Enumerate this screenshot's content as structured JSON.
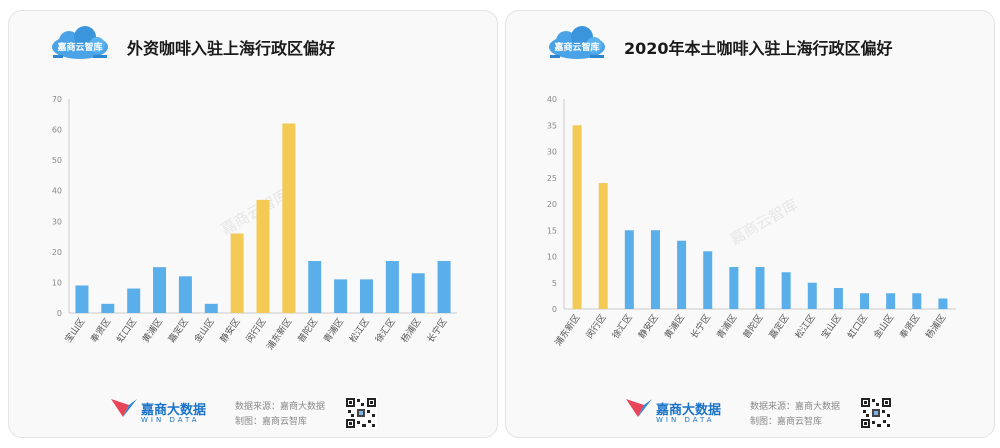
{
  "brand": {
    "logo_text": "嘉商云智库",
    "name": "嘉商大数据",
    "sub": "WIN DATA",
    "source_line": "数据来源：嘉商大数据",
    "maker_line": "制图：嘉商云智库",
    "watermark": "嘉商云智库"
  },
  "colors": {
    "blue": "#5aaee9",
    "gold": "#f2ca55",
    "axis": "#cccccc",
    "label": "#555555"
  },
  "chart_data": [
    {
      "type": "bar",
      "title": "外资咖啡入驻上海行政区偏好",
      "categories": [
        "宝山区",
        "奉贤区",
        "虹口区",
        "黄浦区",
        "嘉定区",
        "金山区",
        "静安区",
        "闵行区",
        "浦东新区",
        "普陀区",
        "青浦区",
        "松江区",
        "徐汇区",
        "杨浦区",
        "长宁区"
      ],
      "values": [
        9,
        3,
        8,
        15,
        12,
        3,
        26,
        37,
        62,
        17,
        11,
        11,
        17,
        13,
        17
      ],
      "highlight": [
        "静安区",
        "闵行区",
        "浦东新区"
      ],
      "ylim": [
        0,
        70
      ],
      "yticks": [
        0,
        10,
        20,
        30,
        40,
        50,
        60,
        70
      ],
      "grid": false,
      "legend": "none"
    },
    {
      "type": "bar",
      "title": "2020年本土咖啡入驻上海行政区偏好",
      "categories": [
        "浦东新区",
        "闵行区",
        "徐汇区",
        "静安区",
        "黄浦区",
        "长宁区",
        "青浦区",
        "普陀区",
        "嘉定区",
        "松江区",
        "宝山区",
        "虹口区",
        "金山区",
        "奉贤区",
        "杨浦区"
      ],
      "values": [
        35,
        24,
        15,
        15,
        13,
        11,
        8,
        8,
        7,
        5,
        4,
        3,
        3,
        3,
        2
      ],
      "highlight": [
        "浦东新区",
        "闵行区"
      ],
      "ylim": [
        0,
        40
      ],
      "yticks": [
        0,
        5,
        10,
        15,
        20,
        25,
        30,
        35,
        40
      ],
      "grid": false,
      "legend": "none"
    }
  ]
}
